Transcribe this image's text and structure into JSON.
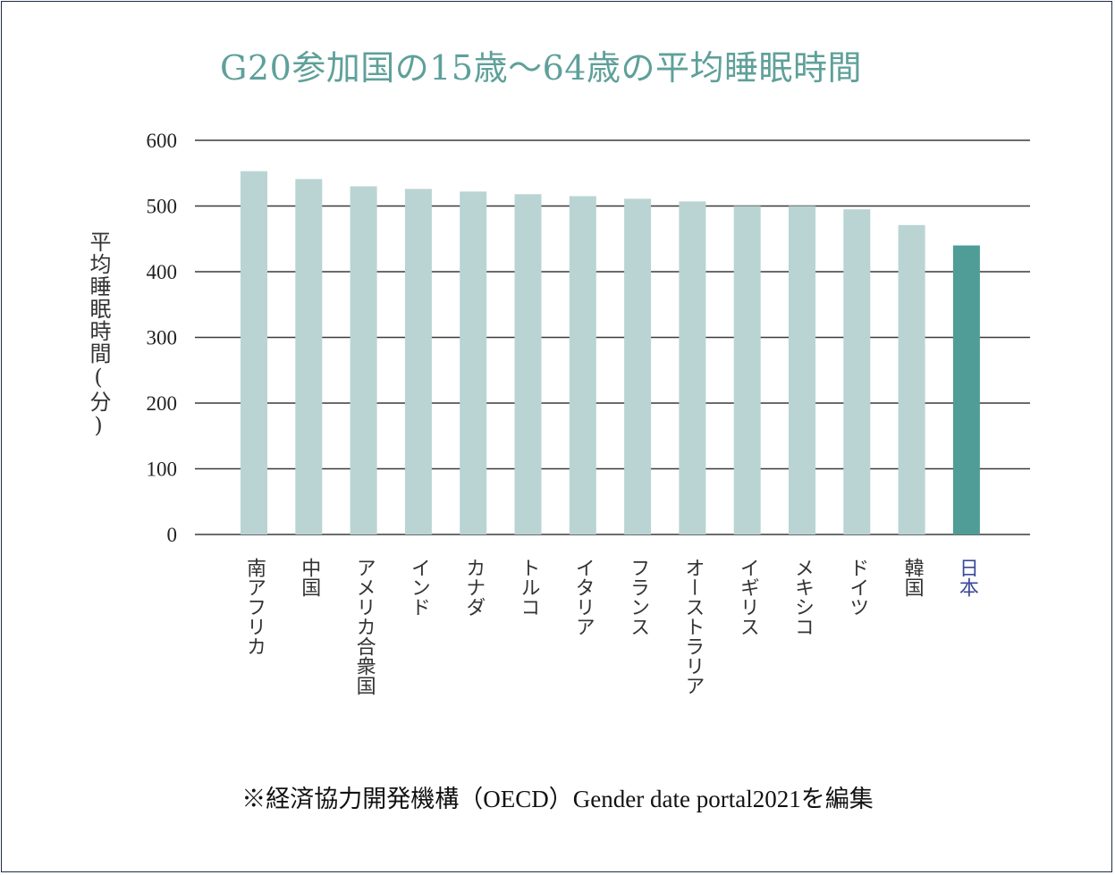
{
  "chart_data": {
    "type": "bar",
    "title": "G20参加国の15歳～64歳の平均睡眠時間",
    "ylabel": "平均睡眠時間(分)",
    "xlabel": "",
    "ylim": [
      0,
      600
    ],
    "yticks": [
      0,
      100,
      200,
      300,
      400,
      500,
      600
    ],
    "grid": true,
    "categories": [
      "南アフリカ",
      "中国",
      "アメリカ合衆国",
      "インド",
      "カナダ",
      "トルコ",
      "イタリア",
      "フランス",
      "オーストラリア",
      "イギリス",
      "メキシコ",
      "ドイツ",
      "韓国",
      "日本"
    ],
    "values": [
      553,
      541,
      530,
      526,
      522,
      518,
      515,
      511,
      507,
      500,
      500,
      495,
      471,
      440
    ],
    "bar_color": "#b9d4d3",
    "highlight_color": "#4f9d96",
    "highlight_label_color": "#3a4a9a",
    "highlight_index": 13
  },
  "note": "※経済協力開発機構（OECD）Gender date portal2021を編集"
}
